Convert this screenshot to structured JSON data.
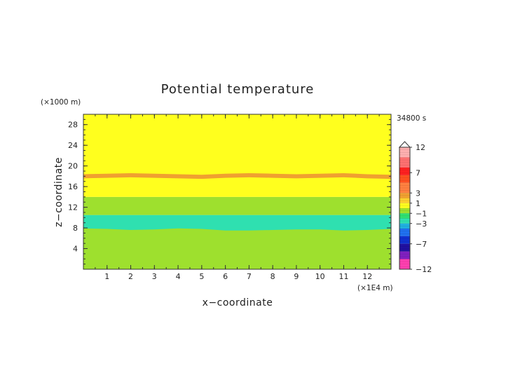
{
  "chart_data": {
    "type": "heatmap",
    "title": "Potential temperature",
    "xlabel": "x−coordinate",
    "ylabel": "z−coordinate",
    "x_unit": "(×1E4 m)",
    "y_unit": "(×1000 m)",
    "time_label": "34800 s",
    "xlim": [
      0,
      13
    ],
    "ylim": [
      0,
      30
    ],
    "x_ticks": [
      {
        "value": 1,
        "label": "1"
      },
      {
        "value": 2,
        "label": "2"
      },
      {
        "value": 3,
        "label": "3"
      },
      {
        "value": 4,
        "label": "4"
      },
      {
        "value": 5,
        "label": "5"
      },
      {
        "value": 6,
        "label": "6"
      },
      {
        "value": 7,
        "label": "7"
      },
      {
        "value": 8,
        "label": "8"
      },
      {
        "value": 9,
        "label": "9"
      },
      {
        "value": 10,
        "label": "10"
      },
      {
        "value": 11,
        "label": "11"
      },
      {
        "value": 12,
        "label": "12"
      }
    ],
    "y_ticks": [
      {
        "value": 4,
        "label": "4"
      },
      {
        "value": 8,
        "label": "8"
      },
      {
        "value": 12,
        "label": "12"
      },
      {
        "value": 16,
        "label": "16"
      },
      {
        "value": 20,
        "label": "20"
      },
      {
        "value": 24,
        "label": "24"
      },
      {
        "value": 28,
        "label": "28"
      }
    ],
    "bands": [
      {
        "name": "surface-layer",
        "z_bottom": 0,
        "z_top": 8,
        "color": "#9ee02e"
      },
      {
        "name": "anomaly-layer",
        "z_bottom": 8,
        "z_top": 10.5,
        "color": "#2fe0b0",
        "lower_boundary_x": [
          0,
          1,
          2,
          3,
          4,
          5,
          6,
          7,
          8,
          9,
          10,
          11,
          12,
          13
        ],
        "lower_boundary_z": [
          7.9,
          7.8,
          7.6,
          7.7,
          7.9,
          7.8,
          7.5,
          7.5,
          7.6,
          7.7,
          7.7,
          7.5,
          7.6,
          7.8
        ]
      },
      {
        "name": "mid-layer",
        "z_bottom": 10.5,
        "z_top": 14,
        "color": "#9ee02e"
      },
      {
        "name": "upper-layer",
        "z_bottom": 14,
        "z_top": 30,
        "color": "#ffff1e"
      },
      {
        "name": "warm-layer",
        "z_center": 18,
        "thickness": 0.8,
        "color": "#f0a030",
        "center_x": [
          0,
          1,
          2,
          3,
          4,
          5,
          6,
          7,
          8,
          9,
          10,
          11,
          12,
          13
        ],
        "center_z": [
          18.0,
          18.1,
          18.2,
          18.1,
          18.0,
          17.9,
          18.1,
          18.2,
          18.1,
          18.0,
          18.1,
          18.2,
          18.0,
          17.9
        ]
      }
    ],
    "colorbar": {
      "max": 12,
      "min": -12,
      "tick_labels": [
        {
          "value": 12,
          "label": "12"
        },
        {
          "value": 7,
          "label": "7"
        },
        {
          "value": 3,
          "label": "3"
        },
        {
          "value": 1,
          "label": "1"
        },
        {
          "value": -1,
          "label": "−1"
        },
        {
          "value": -3,
          "label": "−3"
        },
        {
          "value": -7,
          "label": "−7"
        },
        {
          "value": -12,
          "label": "−12"
        }
      ],
      "segments": [
        {
          "from": 12,
          "to": 10,
          "color": "#ffb0b0"
        },
        {
          "from": 10,
          "to": 8,
          "color": "#ff7070"
        },
        {
          "from": 8,
          "to": 6.5,
          "color": "#ff2020"
        },
        {
          "from": 6.5,
          "to": 5,
          "color": "#ff5020"
        },
        {
          "from": 5,
          "to": 3,
          "color": "#ff8040"
        },
        {
          "from": 3,
          "to": 2,
          "color": "#f0a030"
        },
        {
          "from": 2,
          "to": 1,
          "color": "#ffd030"
        },
        {
          "from": 1,
          "to": 0,
          "color": "#ffff1e"
        },
        {
          "from": 0,
          "to": -1,
          "color": "#9ee02e"
        },
        {
          "from": -1,
          "to": -2,
          "color": "#30e070"
        },
        {
          "from": -2,
          "to": -3,
          "color": "#2fe0b0"
        },
        {
          "from": -3,
          "to": -4,
          "color": "#20b0e0"
        },
        {
          "from": -4,
          "to": -5.5,
          "color": "#2070f0"
        },
        {
          "from": -5.5,
          "to": -7,
          "color": "#1030d0"
        },
        {
          "from": -7,
          "to": -8.5,
          "color": "#2010a0"
        },
        {
          "from": -8.5,
          "to": -10,
          "color": "#8020c0"
        },
        {
          "from": -10,
          "to": -12,
          "color": "#ff40b0"
        }
      ]
    }
  }
}
